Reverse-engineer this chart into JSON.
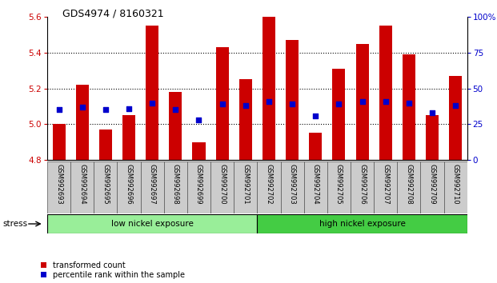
{
  "title": "GDS4974 / 8160321",
  "samples": [
    "GSM992693",
    "GSM992694",
    "GSM992695",
    "GSM992696",
    "GSM992697",
    "GSM992698",
    "GSM992699",
    "GSM992700",
    "GSM992701",
    "GSM992702",
    "GSM992703",
    "GSM992704",
    "GSM992705",
    "GSM992706",
    "GSM992707",
    "GSM992708",
    "GSM992709",
    "GSM992710"
  ],
  "red_values": [
    5.0,
    5.22,
    4.97,
    5.05,
    5.55,
    5.18,
    4.9,
    5.43,
    5.25,
    5.6,
    5.47,
    4.95,
    5.31,
    5.45,
    5.55,
    5.39,
    5.05,
    5.27
  ],
  "blue_percentiles": [
    35,
    37,
    35,
    36,
    40,
    35,
    28,
    39,
    38,
    41,
    39,
    31,
    39,
    41,
    41,
    40,
    33,
    38
  ],
  "ylim_left": [
    4.8,
    5.6
  ],
  "ylim_right": [
    0,
    100
  ],
  "yticks_left": [
    4.8,
    5.0,
    5.2,
    5.4,
    5.6
  ],
  "yticks_right": [
    0,
    25,
    50,
    75,
    100
  ],
  "ytick_labels_right": [
    "0",
    "25",
    "50",
    "75",
    "100%"
  ],
  "bar_bottom": 4.8,
  "bar_color": "#cc0000",
  "dot_color": "#0000cc",
  "group1_label": "low nickel exposure",
  "group2_label": "high nickel exposure",
  "group1_color": "#99ee99",
  "group2_color": "#44cc44",
  "stress_label": "stress",
  "legend_red": "transformed count",
  "legend_blue": "percentile rank within the sample",
  "axis_label_color_left": "#cc0000",
  "axis_label_color_right": "#0000cc",
  "n_low": 9,
  "n_high": 9
}
